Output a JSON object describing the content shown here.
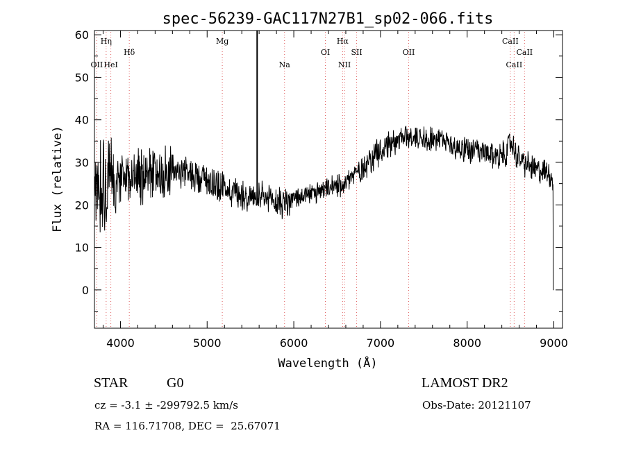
{
  "chart_data": {
    "type": "line",
    "title": "spec-56239-GAC117N27B1_sp02-066.fits",
    "xlabel": "Wavelength (Å)",
    "ylabel": "Flux (relative)",
    "xlim": [
      3700,
      9100
    ],
    "ylim": [
      -9,
      61
    ],
    "xticks": [
      4000,
      5000,
      6000,
      7000,
      8000,
      9000
    ],
    "yticks": [
      0,
      10,
      20,
      30,
      40,
      50,
      60
    ],
    "grid": false,
    "line_color": "#000000",
    "marker_line_color": "#e06060",
    "spike": {
      "x": 5577,
      "ymin": 20,
      "ymax": 61
    },
    "continuum": [
      [
        3700,
        22
      ],
      [
        3780,
        26
      ],
      [
        3850,
        24
      ],
      [
        3950,
        26
      ],
      [
        4050,
        27
      ],
      [
        4200,
        26
      ],
      [
        4400,
        27
      ],
      [
        4600,
        28
      ],
      [
        4800,
        27.5
      ],
      [
        5000,
        26
      ],
      [
        5200,
        24
      ],
      [
        5400,
        22.5
      ],
      [
        5577,
        21.5
      ],
      [
        5700,
        21
      ],
      [
        5900,
        20.5
      ],
      [
        6100,
        22
      ],
      [
        6300,
        23
      ],
      [
        6500,
        24.5
      ],
      [
        6700,
        27
      ],
      [
        6900,
        31
      ],
      [
        7100,
        34.5
      ],
      [
        7300,
        36
      ],
      [
        7500,
        36
      ],
      [
        7700,
        35
      ],
      [
        7900,
        33.5
      ],
      [
        8100,
        32.5
      ],
      [
        8300,
        31.5
      ],
      [
        8450,
        32
      ],
      [
        8500,
        35
      ],
      [
        8560,
        32
      ],
      [
        8650,
        30
      ],
      [
        8800,
        28
      ],
      [
        8950,
        27.5
      ],
      [
        9000,
        25
      ]
    ],
    "spectral_lines": [
      {
        "label": "OII",
        "wavelength": 3727,
        "row": 3
      },
      {
        "label": "Hη",
        "wavelength": 3835,
        "row": 1
      },
      {
        "label": "HeI",
        "wavelength": 3889,
        "row": 3
      },
      {
        "label": "Hδ",
        "wavelength": 4102,
        "row": 2
      },
      {
        "label": "Mg",
        "wavelength": 5175,
        "row": 1
      },
      {
        "label": "Na",
        "wavelength": 5893,
        "row": 3
      },
      {
        "label": "OI",
        "wavelength": 6364,
        "row": 2
      },
      {
        "label": "Hα",
        "wavelength": 6563,
        "row": 1
      },
      {
        "label": "NII",
        "wavelength": 6585,
        "row": 3
      },
      {
        "label": "SII",
        "wavelength": 6725,
        "row": 2
      },
      {
        "label": "OII",
        "wavelength": 7325,
        "row": 2
      },
      {
        "label": "CaII",
        "wavelength": 8498,
        "row": 1
      },
      {
        "label": "CaII",
        "wavelength": 8542,
        "row": 3
      },
      {
        "label": "CaII",
        "wavelength": 8662,
        "row": 2
      }
    ]
  },
  "info": {
    "object_type": "STAR",
    "object_class": "G0",
    "survey": "LAMOST DR2",
    "redshift": "cz = -3.1 ± -299792.5 km/s",
    "obs_date": "Obs-Date: 20121107",
    "radec": "RA = 116.71708, DEC =  25.67071"
  }
}
